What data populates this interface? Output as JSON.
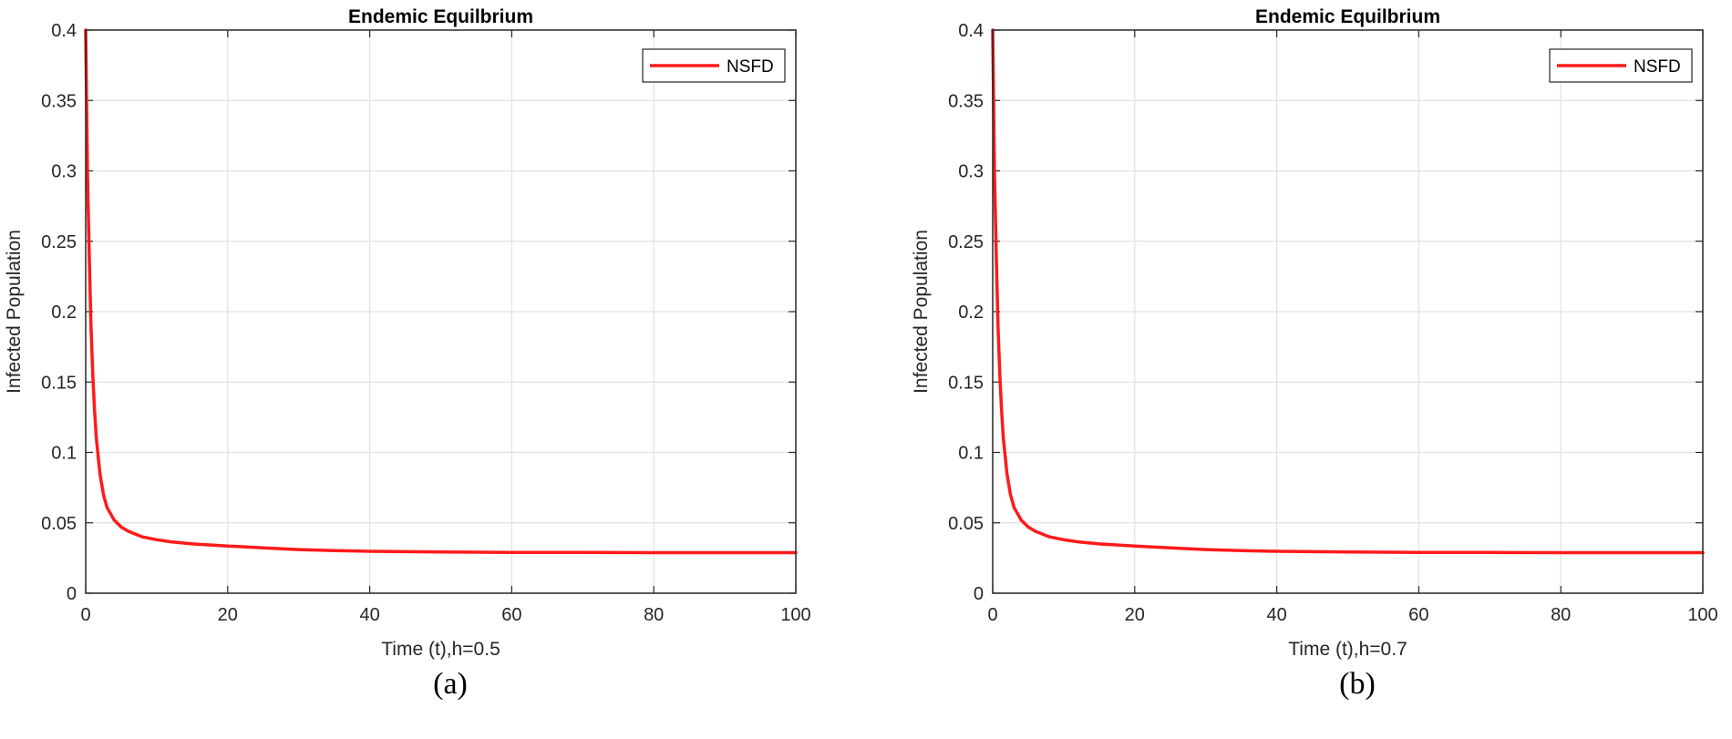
{
  "chart_data": [
    {
      "type": "line",
      "title": "Endemic Equilbrium",
      "xlabel": "Time (t),h=0.5",
      "ylabel": "Infected Population",
      "xlim": [
        0,
        100
      ],
      "ylim": [
        0,
        0.4
      ],
      "xticks": [
        0,
        20,
        40,
        60,
        80,
        100
      ],
      "yticks": [
        0,
        0.05,
        0.1,
        0.15,
        0.2,
        0.25,
        0.3,
        0.35,
        0.4
      ],
      "ytick_labels": [
        "0",
        "0.05",
        "0.1",
        "0.15",
        "0.2",
        "0.25",
        "0.3",
        "0.35",
        "0.4"
      ],
      "grid": true,
      "legend_position": "top-right",
      "series": [
        {
          "name": "NSFD",
          "color": "#ff1a1a",
          "x": [
            0,
            0.25,
            0.5,
            0.75,
            1,
            1.25,
            1.5,
            2,
            2.5,
            3,
            4,
            5,
            6,
            8,
            10,
            12,
            15,
            20,
            25,
            30,
            35,
            40,
            50,
            60,
            70,
            80,
            90,
            100
          ],
          "y": [
            0.4,
            0.3,
            0.24,
            0.19,
            0.155,
            0.13,
            0.11,
            0.085,
            0.07,
            0.061,
            0.052,
            0.047,
            0.044,
            0.04,
            0.038,
            0.0365,
            0.035,
            0.0335,
            0.0322,
            0.031,
            0.0303,
            0.0298,
            0.0293,
            0.029,
            0.0289,
            0.0288,
            0.0288,
            0.0288
          ]
        }
      ],
      "caption": "(a)"
    },
    {
      "type": "line",
      "title": "Endemic Equilbrium",
      "xlabel": "Time (t),h=0.7",
      "ylabel": "Infected Population",
      "xlim": [
        0,
        100
      ],
      "ylim": [
        0,
        0.4
      ],
      "xticks": [
        0,
        20,
        40,
        60,
        80,
        100
      ],
      "yticks": [
        0,
        0.05,
        0.1,
        0.15,
        0.2,
        0.25,
        0.3,
        0.35,
        0.4
      ],
      "ytick_labels": [
        "0",
        "0.05",
        "0.1",
        "0.15",
        "0.2",
        "0.25",
        "0.3",
        "0.35",
        "0.4"
      ],
      "grid": true,
      "legend_position": "top-right",
      "series": [
        {
          "name": "NSFD",
          "color": "#ff1a1a",
          "x": [
            0,
            0.25,
            0.5,
            0.75,
            1,
            1.25,
            1.5,
            2,
            2.5,
            3,
            4,
            5,
            6,
            8,
            10,
            12,
            15,
            20,
            25,
            30,
            35,
            40,
            50,
            60,
            70,
            80,
            90,
            100
          ],
          "y": [
            0.4,
            0.3,
            0.24,
            0.19,
            0.155,
            0.13,
            0.11,
            0.085,
            0.07,
            0.061,
            0.052,
            0.047,
            0.044,
            0.04,
            0.038,
            0.0365,
            0.035,
            0.0335,
            0.0322,
            0.031,
            0.0303,
            0.0298,
            0.0293,
            0.029,
            0.0289,
            0.0288,
            0.0288,
            0.0288
          ]
        }
      ],
      "caption": "(b)"
    }
  ]
}
